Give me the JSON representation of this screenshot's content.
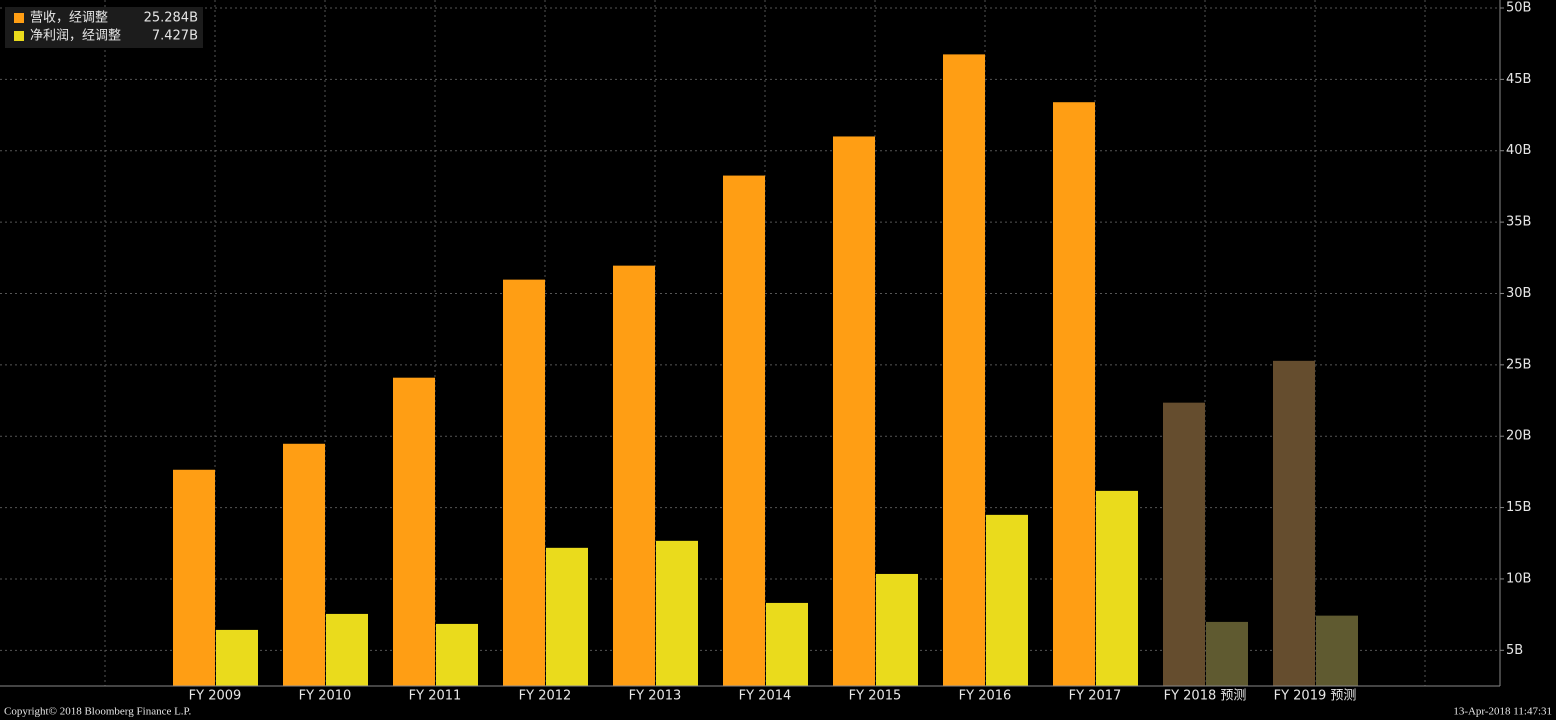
{
  "chart_data": {
    "type": "bar",
    "categories": [
      "FY 2009",
      "FY 2010",
      "FY 2011",
      "FY 2012",
      "FY 2013",
      "FY 2014",
      "FY 2015",
      "FY 2016",
      "FY 2017",
      "FY 2018 预测",
      "FY 2019 预测"
    ],
    "series": [
      {
        "name": "营收，经调整",
        "legend_label": "25.284B",
        "color": "#ff9e14",
        "point_colors": [
          "#ff9e14",
          "#ff9e14",
          "#ff9e14",
          "#ff9e14",
          "#ff9e14",
          "#ff9e14",
          "#ff9e14",
          "#ff9e14",
          "#ff9e14",
          "#654d2e",
          "#654d2e"
        ],
        "values": [
          17.65,
          19.47,
          24.1,
          30.97,
          31.95,
          38.26,
          41.0,
          46.75,
          43.4,
          22.35,
          25.28
        ]
      },
      {
        "name": "净利润，经调整",
        "legend_label": "7.427B",
        "color": "#eadb1c",
        "point_colors": [
          "#eadb1c",
          "#eadb1c",
          "#eadb1c",
          "#eadb1c",
          "#eadb1c",
          "#eadb1c",
          "#eadb1c",
          "#eadb1c",
          "#eadb1c",
          "#5f5a30",
          "#5f5a30"
        ],
        "values": [
          6.43,
          7.55,
          6.85,
          12.18,
          12.67,
          8.32,
          10.35,
          14.49,
          16.17,
          6.99,
          7.43
        ]
      }
    ],
    "ylim": [
      2.5,
      50
    ],
    "yticks": [
      {
        "value": 5,
        "label": "5B"
      },
      {
        "value": 10,
        "label": "10B"
      },
      {
        "value": 15,
        "label": "15B"
      },
      {
        "value": 20,
        "label": "20B"
      },
      {
        "value": 25,
        "label": "25B"
      },
      {
        "value": 30,
        "label": "30B"
      },
      {
        "value": 35,
        "label": "35B"
      },
      {
        "value": 40,
        "label": "40B"
      },
      {
        "value": 45,
        "label": "45B"
      },
      {
        "value": 50,
        "label": "50B"
      }
    ],
    "grid": true,
    "legend": "top-left",
    "footer_left": "Copyright© 2018 Bloomberg Finance L.P.",
    "footer_right": "13-Apr-2018 11:47:31"
  }
}
